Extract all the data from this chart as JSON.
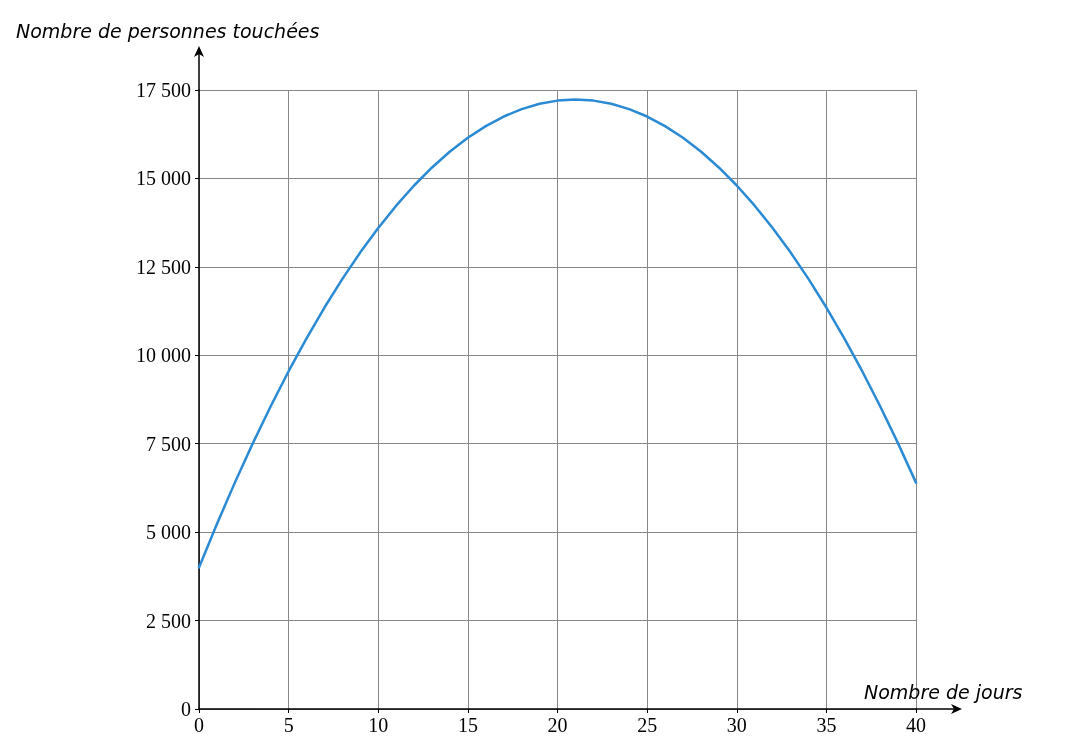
{
  "chart_data": {
    "type": "line",
    "xlabel": "Nombre de jours",
    "ylabel": "Nombre de personnes touchées",
    "x": [
      0,
      1,
      2,
      3,
      4,
      5,
      6,
      7,
      8,
      9,
      10,
      11,
      12,
      13,
      14,
      15,
      16,
      17,
      18,
      19,
      20,
      21,
      22,
      23,
      24,
      25,
      26,
      27,
      28,
      29,
      30,
      31,
      32,
      33,
      34,
      35,
      36,
      37,
      38,
      39,
      40
    ],
    "series": [
      {
        "color": "#2a8ad4",
        "values": [
          4000,
          5230,
          6400,
          7510,
          8560,
          9550,
          10480,
          11350,
          12160,
          12910,
          13600,
          14230,
          14800,
          15310,
          15760,
          16150,
          16480,
          16750,
          16960,
          17110,
          17200,
          17230,
          17200,
          17110,
          16960,
          16750,
          16480,
          16150,
          15760,
          15310,
          14800,
          14230,
          13600,
          12910,
          12160,
          11350,
          10480,
          9550,
          8560,
          7510,
          6400
        ]
      }
    ],
    "xlim": [
      0,
      40
    ],
    "xticks": [
      0,
      5,
      10,
      15,
      20,
      25,
      30,
      35,
      40
    ],
    "ylim": [
      0,
      17500
    ],
    "yticks": [
      0,
      {
        "value": 2500,
        "label": "2 500"
      },
      {
        "value": 5000,
        "label": "5 000"
      },
      {
        "value": 7500,
        "label": "7 500"
      },
      {
        "value": 10000,
        "label": "10 000"
      },
      {
        "value": 12500,
        "label": "12 500"
      },
      {
        "value": 15000,
        "label": "15 000"
      },
      {
        "value": 17500,
        "label": "17 500"
      }
    ],
    "grid": true,
    "marker": "none",
    "line_style": "solid"
  }
}
